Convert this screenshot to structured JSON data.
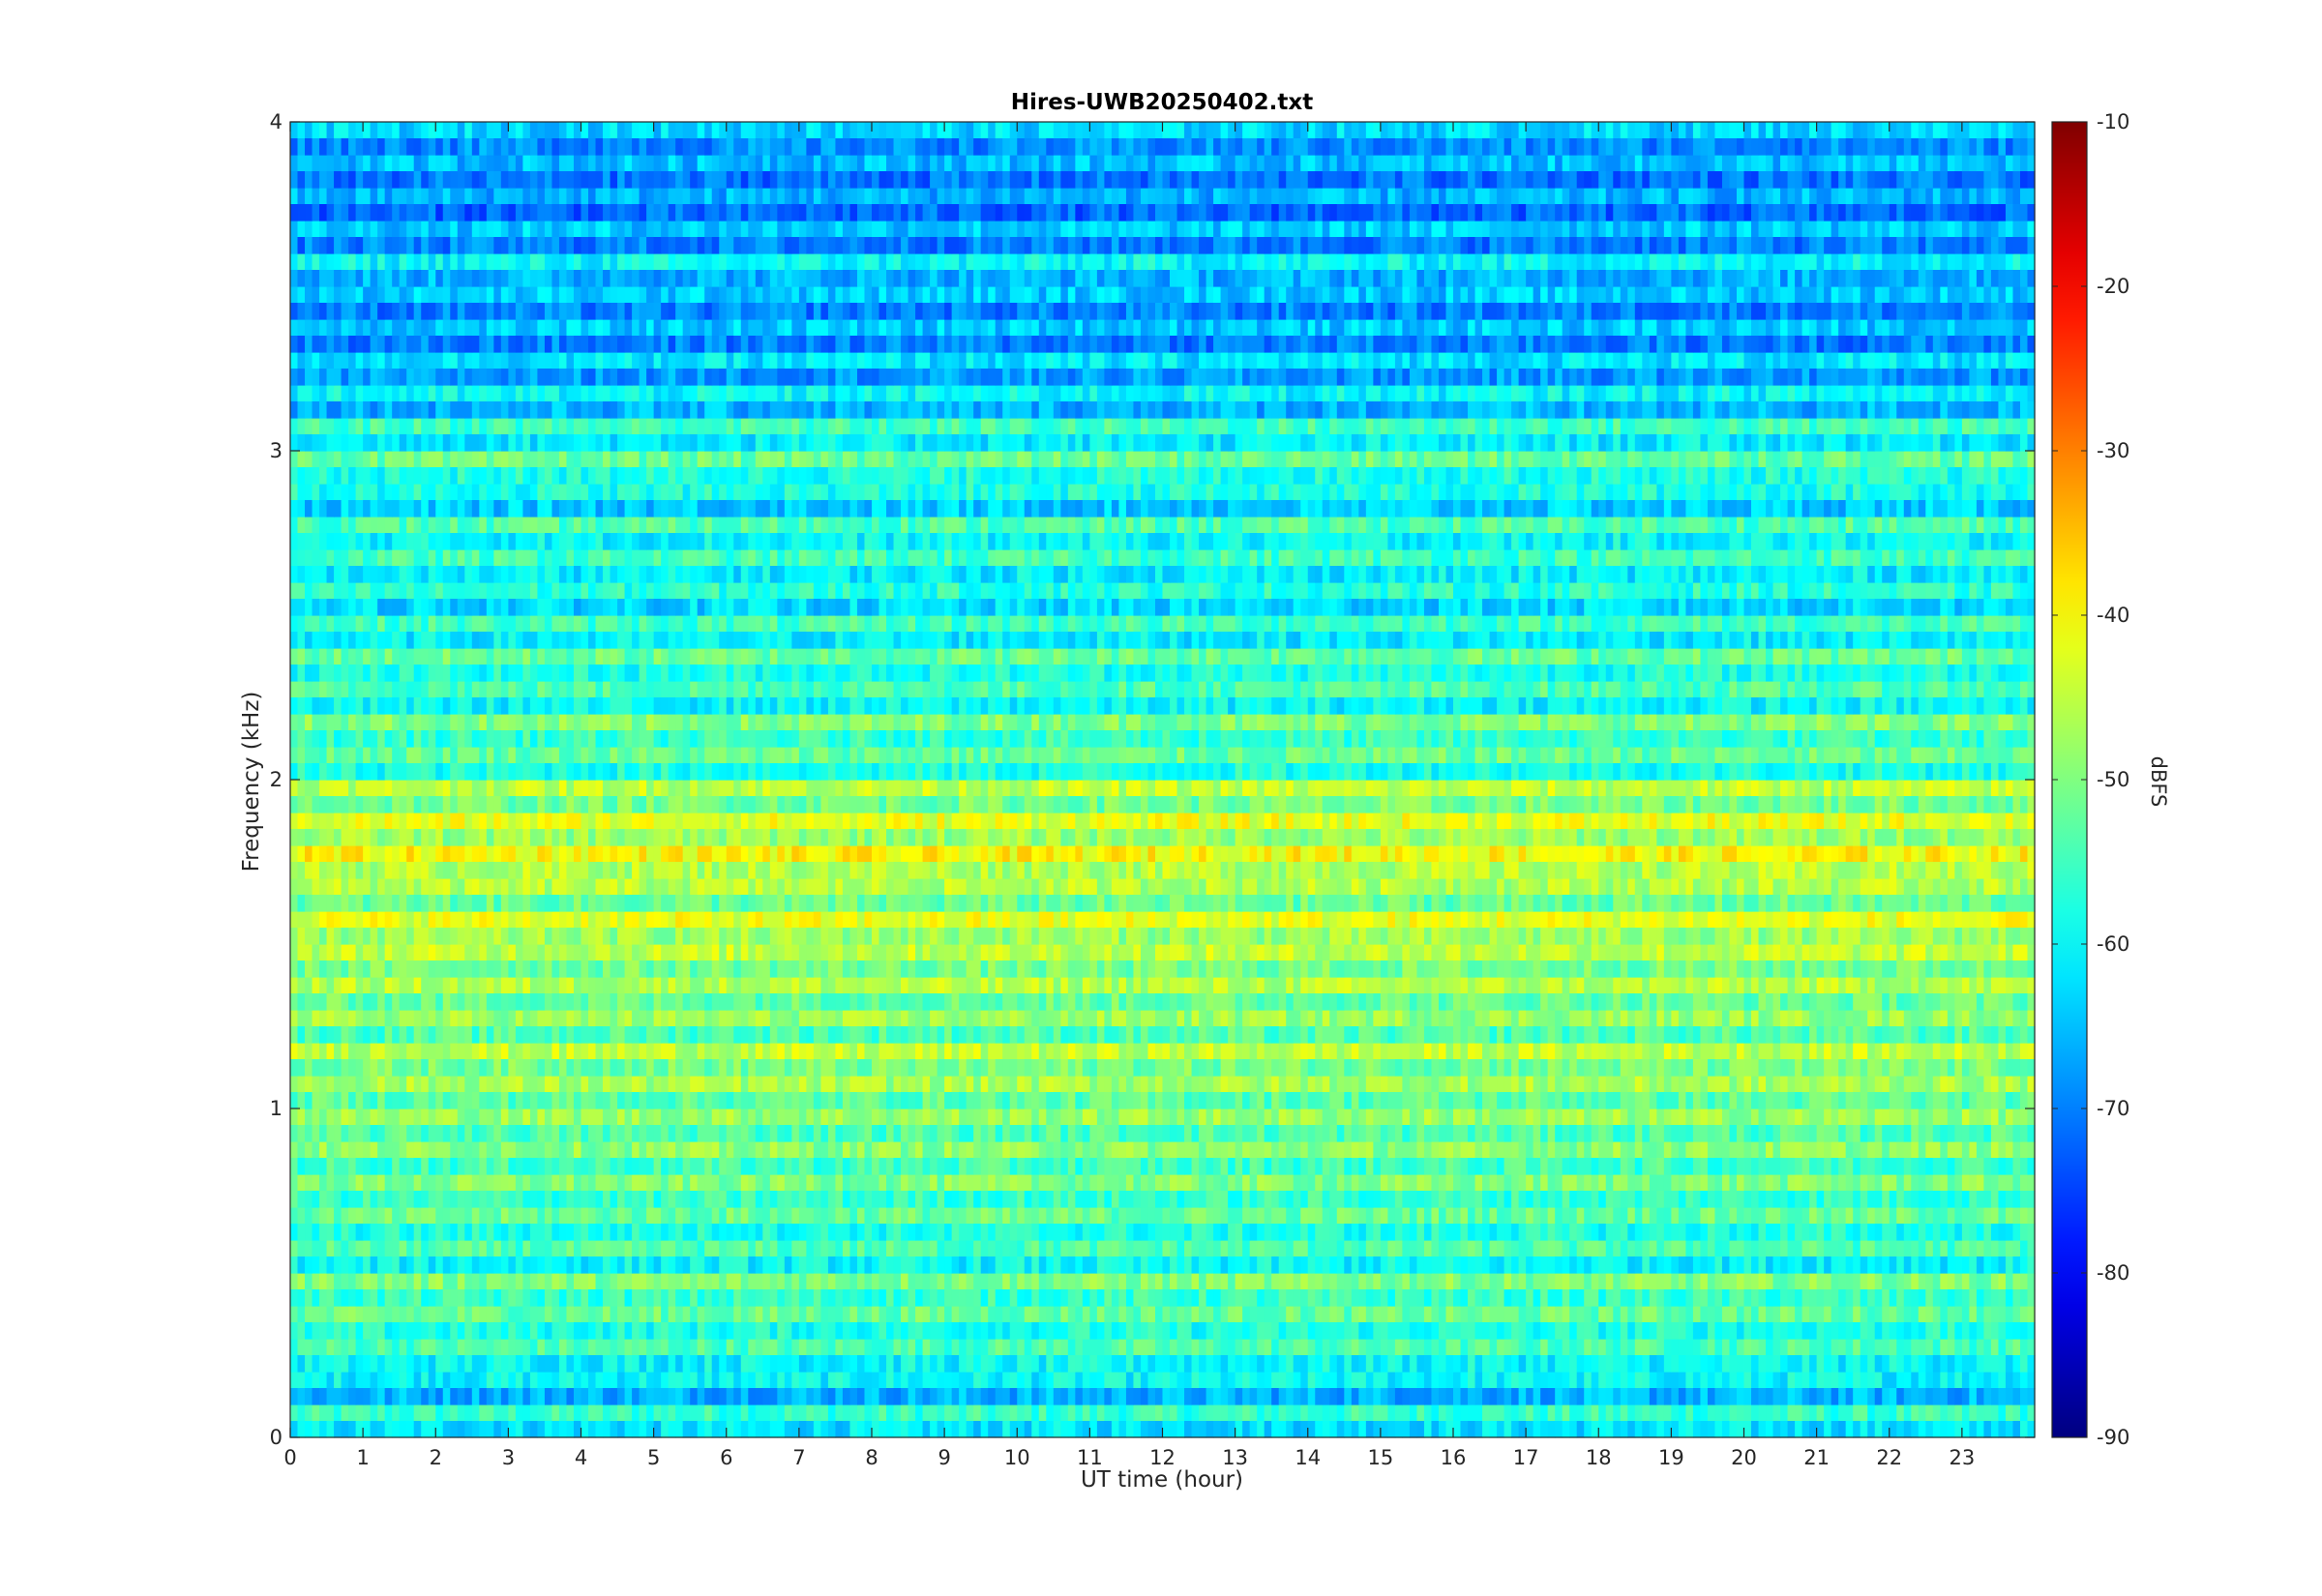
{
  "chart_data": {
    "type": "heatmap",
    "title": "Hires-UWB20250402.txt",
    "xlabel": "UT time (hour)",
    "ylabel": "Frequency (kHz)",
    "xlim": [
      0,
      24
    ],
    "ylim": [
      0,
      4
    ],
    "x_ticks": [
      "0",
      "1",
      "2",
      "3",
      "4",
      "5",
      "6",
      "7",
      "8",
      "9",
      "10",
      "11",
      "12",
      "13",
      "14",
      "15",
      "16",
      "17",
      "18",
      "19",
      "20",
      "21",
      "22",
      "23"
    ],
    "y_ticks": [
      "0",
      "1",
      "2",
      "3",
      "4"
    ],
    "colorbar": {
      "label": "dBFS",
      "range": [
        -90,
        -10
      ],
      "ticks": [
        "-10",
        "-20",
        "-30",
        "-40",
        "-50",
        "-60",
        "-70",
        "-80",
        "-90"
      ],
      "colormap": "jet",
      "colors": [
        "#000080",
        "#0000ff",
        "#0080ff",
        "#00ffff",
        "#80ff80",
        "#ffff00",
        "#ff8000",
        "#ff0000",
        "#800000"
      ]
    },
    "band_center_khz": [
      0.05,
      0.15,
      0.25,
      0.35,
      0.45,
      0.55,
      0.65,
      0.75,
      0.85,
      0.95,
      1.05,
      1.15,
      1.25,
      1.35,
      1.45,
      1.55,
      1.65,
      1.75,
      1.85,
      1.95,
      2.05,
      2.15,
      2.25,
      2.35,
      2.45,
      2.55,
      2.65,
      2.75,
      2.85,
      2.95,
      3.05,
      3.15,
      3.25,
      3.35,
      3.45,
      3.55,
      3.65,
      3.75,
      3.85,
      3.95
    ],
    "band_level_dbfs": [
      -56,
      -60,
      -54,
      -52,
      -50,
      -54,
      -52,
      -50,
      -49,
      -48,
      -47,
      -45,
      -48,
      -46,
      -45,
      -42,
      -46,
      -40,
      -42,
      -45,
      -52,
      -50,
      -54,
      -52,
      -55,
      -57,
      -55,
      -54,
      -58,
      -52,
      -55,
      -60,
      -62,
      -64,
      -64,
      -60,
      -64,
      -66,
      -65,
      -63
    ]
  }
}
